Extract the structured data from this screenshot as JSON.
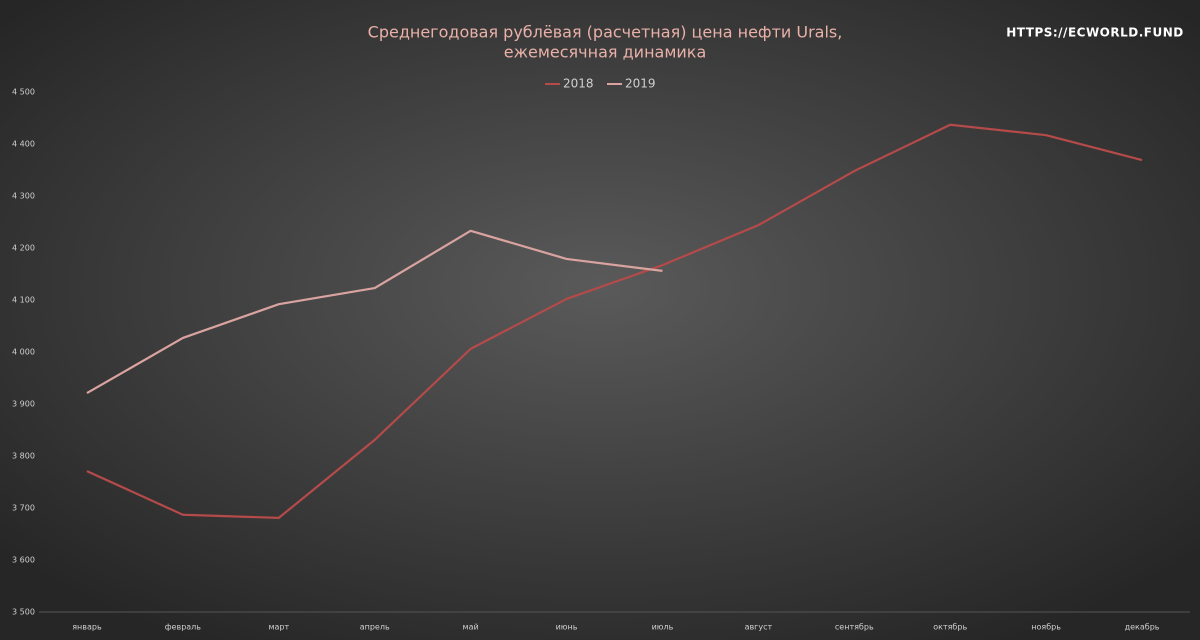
{
  "chart_data": {
    "type": "line",
    "title": [
      "Среднегодовая рублёвая (расчетная) цена нефти Urals,",
      "ежемесячная динамика"
    ],
    "annotation": "HTTPS://ECWORLD.FUND",
    "categories": [
      "январь",
      "февраль",
      "март",
      "апрель",
      "май",
      "июнь",
      "июль",
      "август",
      "сентябрь",
      "октябрь",
      "ноябрь",
      "декабрь"
    ],
    "series": [
      {
        "name": "2018",
        "color": "#b54a4a",
        "values": [
          3771,
          3687,
          3681,
          3831,
          4006,
          4102,
          4167,
          4244,
          4348,
          4437,
          4417,
          4369
        ]
      },
      {
        "name": "2019",
        "color": "#d9a3a0",
        "values": [
          3921,
          4027,
          4092,
          4123,
          4233,
          4179,
          4156,
          null,
          null,
          null,
          null,
          null
        ]
      }
    ],
    "ylim": [
      3500,
      4500
    ],
    "yticks": [
      {
        "value": 3500,
        "label": "3 500"
      },
      {
        "value": 3600,
        "label": "3 600"
      },
      {
        "value": 3700,
        "label": "3 700"
      },
      {
        "value": 3800,
        "label": "3 800"
      },
      {
        "value": 3900,
        "label": "3 900"
      },
      {
        "value": 4000,
        "label": "4 000"
      },
      {
        "value": 4100,
        "label": "4 100"
      },
      {
        "value": 4200,
        "label": "4 200"
      },
      {
        "value": 4300,
        "label": "4 300"
      },
      {
        "value": 4400,
        "label": "4 400"
      },
      {
        "value": 4500,
        "label": "4 500"
      }
    ],
    "grid": false,
    "legend": "top"
  }
}
